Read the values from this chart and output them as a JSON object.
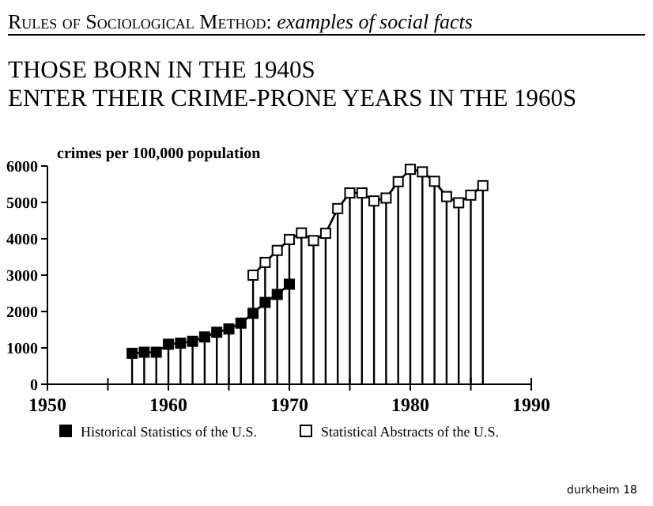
{
  "chart_data": {
    "type": "line",
    "title": "Rules of Sociological Method: examples of social facts",
    "subtitle": "THOSE BORN IN THE 1940S\nENTER THEIR CRIME-PRONE YEARS IN THE 1960S",
    "ylabel": "crimes per 100,000 population",
    "annotations": [
      "durkheim 18"
    ],
    "x": [
      1957,
      1958,
      1959,
      1960,
      1961,
      1962,
      1963,
      1964,
      1965,
      1966,
      1967,
      1968,
      1969,
      1970
    ],
    "series": [
      {
        "type": "bar",
        "color": "#000000",
        "x": [
          1957,
          1958,
          1959,
          1960,
          1961,
          1962,
          1963,
          1964,
          1965,
          1966,
          1967,
          1968,
          1969,
          1970,
          1971,
          1972,
          1973,
          1974,
          1975,
          1976,
          1977,
          1978,
          1979,
          1980,
          1981,
          1982,
          1983,
          1984,
          1985,
          1986
        ],
        "values": [
          850,
          880,
          880,
          1100,
          1130,
          1180,
          1300,
          1430,
          1520,
          1680,
          3000,
          3350,
          3680,
          3980,
          4160,
          3950,
          4150,
          4830,
          5260,
          5260,
          5040,
          5120,
          5570,
          5910,
          5840,
          5580,
          5160,
          4990,
          5200,
          5460
        ]
      },
      {
        "name": "Historical Statistics of the U.S.",
        "color": "#000000",
        "marker": "square",
        "values": [
          850,
          880,
          880,
          1100,
          1130,
          1180,
          1300,
          1430,
          1520,
          1680,
          1950,
          2250,
          2470,
          2750
        ]
      },
      {
        "name": "Statistical Abstracts of the U.S.",
        "color": "#000000",
        "marker": "square",
        "x": [
          1967,
          1968,
          1969,
          1970,
          1971,
          1972,
          1973,
          1974,
          1975,
          1976,
          1977,
          1978,
          1979,
          1980,
          1981,
          1982,
          1983,
          1984,
          1985,
          1986
        ],
        "values": [
          3000,
          3350,
          3680,
          3980,
          4160,
          3950,
          4150,
          4830,
          5260,
          5260,
          5040,
          5120,
          5570,
          5910,
          5840,
          5580,
          5160,
          4990,
          5200,
          5460
        ]
      }
    ],
    "xlim": [
      1950,
      1990
    ],
    "xticks": [
      1950,
      {
        "value": 1955,
        "label": null
      },
      1960,
      {
        "value": 1965,
        "label": null
      },
      1970,
      {
        "value": 1975,
        "label": null
      },
      1980,
      {
        "value": 1985,
        "label": null
      },
      1990
    ],
    "ylim": [
      0,
      6000
    ],
    "yticks": [
      0,
      1000,
      2000,
      3000,
      4000,
      5000,
      6000
    ],
    "grid": false,
    "legend": "bottom"
  }
}
